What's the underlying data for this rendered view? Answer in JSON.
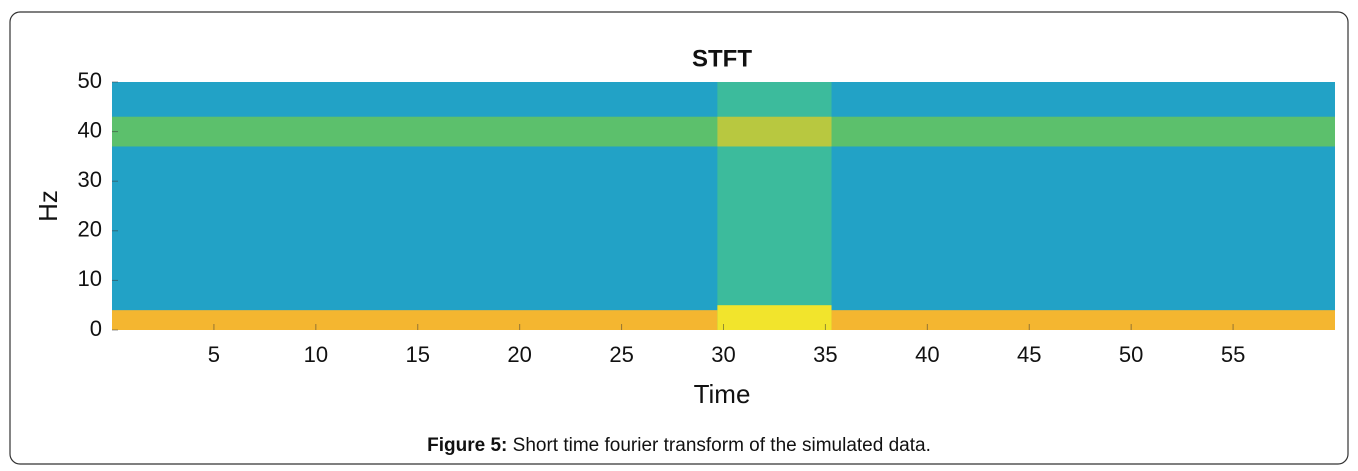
{
  "chart_data": {
    "type": "spectrogram",
    "title": "STFT",
    "xlabel": "Time",
    "ylabel": "Hz",
    "xlim": [
      0,
      60
    ],
    "ylim": [
      0,
      50
    ],
    "xticks": [
      5,
      10,
      15,
      20,
      25,
      30,
      35,
      40,
      45,
      50,
      55
    ],
    "yticks": [
      0,
      10,
      20,
      30,
      40,
      50
    ],
    "regions": [
      {
        "x": [
          0,
          60
        ],
        "y": [
          0,
          50
        ],
        "color": "#22a2c6"
      },
      {
        "x": [
          0,
          60
        ],
        "y": [
          37,
          43
        ],
        "color": "#5cc06c"
      },
      {
        "x": [
          0,
          60
        ],
        "y": [
          0,
          4
        ],
        "color": "#f4b630"
      },
      {
        "x": [
          29.7,
          35.3
        ],
        "y": [
          0,
          50
        ],
        "color": "#3cbb9c"
      },
      {
        "x": [
          29.7,
          35.3
        ],
        "y": [
          37,
          43
        ],
        "color": "#b8c840"
      },
      {
        "x": [
          29.7,
          35.3
        ],
        "y": [
          0,
          5
        ],
        "color": "#f2e42c"
      }
    ]
  },
  "caption": {
    "label": "Figure 5:",
    "text": "Short time fourier transform of the simulated data."
  }
}
